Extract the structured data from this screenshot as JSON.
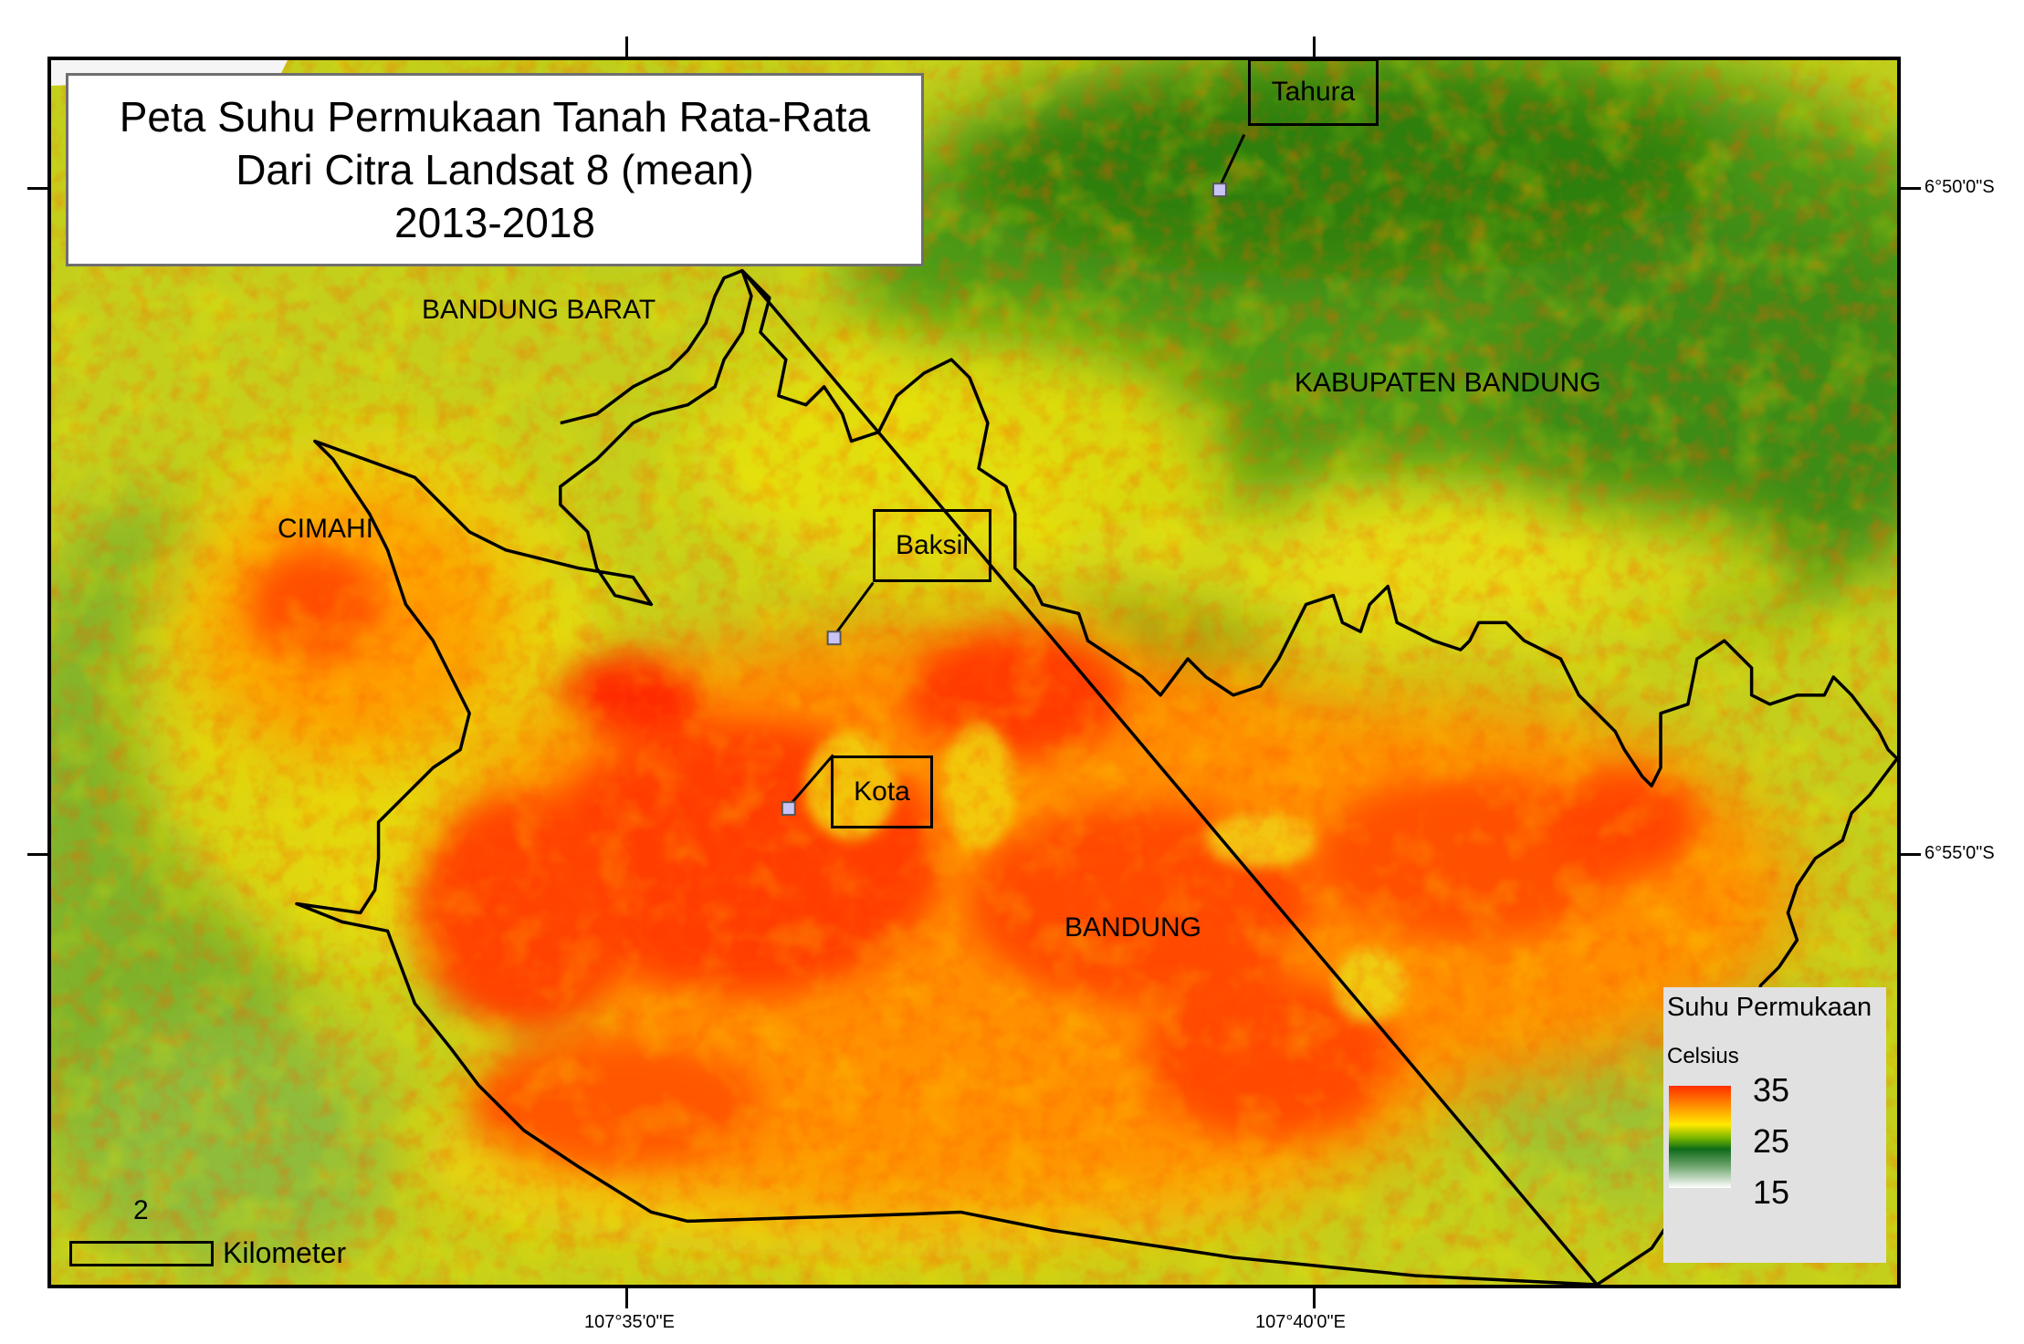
{
  "map": {
    "title_lines": [
      "Peta Suhu Permukaan Tanah Rata-Rata",
      "Dari Citra Landsat 8 (mean)",
      "2013-2018"
    ],
    "regions": {
      "bandung_barat": "BANDUNG BARAT",
      "kabupaten_bandung": "KABUPATEN BANDUNG",
      "cimahi": "CIMAHI",
      "bandung": "BANDUNG"
    },
    "stations": {
      "tahura": "Tahura",
      "baksil": "Baksil",
      "kota": "Kota"
    },
    "coordinates": {
      "lat_top": "6°50'0\"S",
      "lat_bottom": "6°55'0\"S",
      "lon_left": "107°35'0\"E",
      "lon_right": "107°40'0\"E"
    },
    "legend": {
      "title": "Suhu Permukaan",
      "unit": "Celsius",
      "max": "35",
      "mid": "25",
      "min": "15",
      "colors": [
        "#ff2d00",
        "#ff9a00",
        "#ffea00",
        "#6fb000",
        "#0f6b1a",
        "#ffffff"
      ]
    },
    "scale_bar": {
      "value": "2",
      "unit": "Kilometer"
    }
  }
}
